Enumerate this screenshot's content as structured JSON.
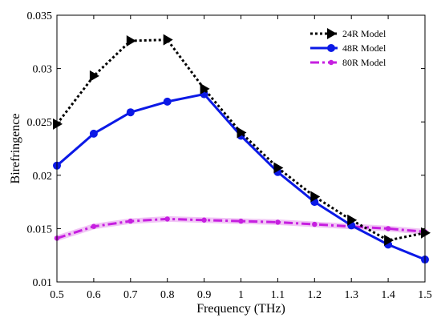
{
  "chart_data": {
    "type": "line",
    "title": "",
    "xlabel": "Frequency (THz)",
    "ylabel": "Birefringence",
    "xlim": [
      0.5,
      1.5
    ],
    "ylim": [
      0.01,
      0.035
    ],
    "grid": false,
    "legend_position": "top-right",
    "x": [
      0.5,
      0.6,
      0.7,
      0.8,
      0.9,
      1.0,
      1.1,
      1.2,
      1.3,
      1.4,
      1.5
    ],
    "x_tick_labels": [
      "0.5",
      "0.6",
      "0.7",
      "0.8",
      "0.9",
      "1",
      "1.1",
      "1.2",
      "1.3",
      "1.4",
      "1.5"
    ],
    "y_ticks": [
      0.01,
      0.015,
      0.02,
      0.025,
      0.03,
      0.035
    ],
    "y_tick_labels": [
      "0.01",
      "0.015",
      "0.02",
      "0.025",
      "0.03",
      "0.035"
    ],
    "series": [
      {
        "name": "24R Model",
        "color": "#000000",
        "line_style": "dotted",
        "marker": "triangle-right",
        "values": [
          0.0248,
          0.0293,
          0.0326,
          0.0327,
          0.0281,
          0.024,
          0.0207,
          0.018,
          0.0158,
          0.0139,
          0.0146
        ]
      },
      {
        "name": "48R Model",
        "color": "#0b19e6",
        "line_style": "solid",
        "marker": "circle",
        "values": [
          0.0209,
          0.0239,
          0.0259,
          0.0269,
          0.0276,
          0.0237,
          0.0203,
          0.0175,
          0.0153,
          0.0135,
          0.0121
        ]
      },
      {
        "name": "80R Model",
        "color": "#c61fe0",
        "line_style": "dash-dot",
        "marker": "small-circle",
        "values": [
          0.0141,
          0.0152,
          0.0157,
          0.0159,
          0.0158,
          0.0157,
          0.0156,
          0.0154,
          0.0152,
          0.015,
          0.0147
        ]
      }
    ]
  }
}
